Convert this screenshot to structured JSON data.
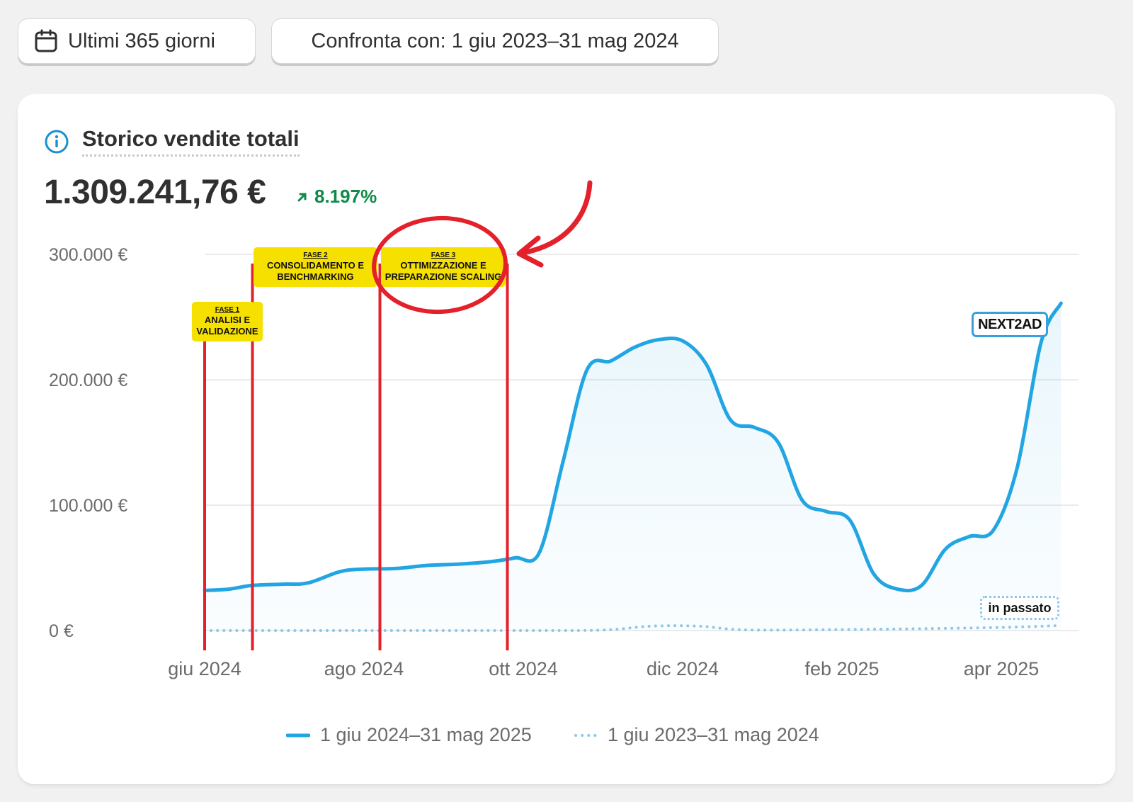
{
  "toolbar": {
    "range_label": "Ultimi 365 giorni",
    "compare_label": "Confronta con: 1 giu 2023–31 mag 2024"
  },
  "card": {
    "title": "Storico vendite totali",
    "total_value": "1.309.241,76 €",
    "growth": "8.197%"
  },
  "annotations": {
    "phases": [
      {
        "name": "FASE 1",
        "label_lines": [
          "ANALISI E",
          "VALIDAZIONE"
        ]
      },
      {
        "name": "FASE 2",
        "label_lines": [
          "CONSOLIDAMENTO E",
          "BENCHMARKING"
        ]
      },
      {
        "name": "FASE 3",
        "label_lines": [
          "OTTIMIZZAZIONE E",
          "PREPARAZIONE SCALING"
        ]
      }
    ],
    "logo_text": "NEXT2AD",
    "past_label": "in passato",
    "marker_color": "#e4202a",
    "phase_color": "#f6e000"
  },
  "chart_data": {
    "type": "area",
    "y_ticks": [
      "300.000 €",
      "200.000 €",
      "100.000 €",
      "0 €"
    ],
    "y_values": [
      300000,
      200000,
      100000,
      0
    ],
    "ylim": [
      0,
      300000
    ],
    "x_ticks": [
      "giu 2024",
      "ago 2024",
      "ott 2024",
      "dic 2024",
      "feb 2025",
      "apr 2025"
    ],
    "x_range_months": [
      0,
      11.5
    ],
    "series": [
      {
        "name": "1 giu 2024–31 mag 2025",
        "color": "#21a5e3",
        "style": "solid",
        "points": [
          [
            0,
            32000
          ],
          [
            0.3,
            33000
          ],
          [
            0.6,
            36000
          ],
          [
            1.0,
            37000
          ],
          [
            1.3,
            38000
          ],
          [
            1.7,
            47000
          ],
          [
            2.0,
            49000
          ],
          [
            2.4,
            49500
          ],
          [
            2.8,
            52000
          ],
          [
            3.2,
            53000
          ],
          [
            3.6,
            55000
          ],
          [
            3.9,
            58000
          ],
          [
            4.2,
            62000
          ],
          [
            4.5,
            135000
          ],
          [
            4.8,
            208000
          ],
          [
            5.1,
            215000
          ],
          [
            5.4,
            226000
          ],
          [
            5.7,
            232000
          ],
          [
            6.0,
            231000
          ],
          [
            6.3,
            212000
          ],
          [
            6.6,
            168000
          ],
          [
            6.9,
            162000
          ],
          [
            7.2,
            150000
          ],
          [
            7.5,
            104000
          ],
          [
            7.8,
            95000
          ],
          [
            8.1,
            88000
          ],
          [
            8.4,
            45000
          ],
          [
            8.7,
            33000
          ],
          [
            9.0,
            36000
          ],
          [
            9.3,
            65000
          ],
          [
            9.6,
            75000
          ],
          [
            9.9,
            80000
          ],
          [
            10.2,
            130000
          ],
          [
            10.5,
            230000
          ],
          [
            10.75,
            261000
          ]
        ]
      },
      {
        "name": "1 giu 2023–31 mag 2024",
        "color": "#8cc8ea",
        "style": "dotted",
        "points": [
          [
            0,
            0
          ],
          [
            2,
            0
          ],
          [
            4,
            0
          ],
          [
            5,
            400
          ],
          [
            5.6,
            3500
          ],
          [
            6.2,
            3500
          ],
          [
            6.8,
            500
          ],
          [
            8,
            800
          ],
          [
            9,
            1500
          ],
          [
            10,
            2500
          ],
          [
            10.75,
            4000
          ]
        ]
      }
    ],
    "markers_months": [
      0,
      0.6,
      2.2,
      3.8
    ]
  }
}
